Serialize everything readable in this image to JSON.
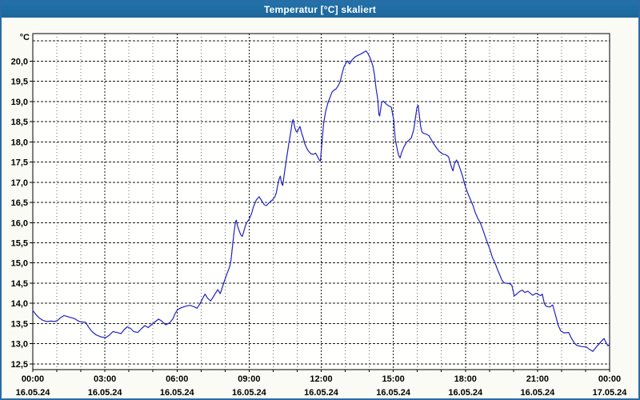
{
  "window": {
    "title": "Temperatur [°C] skaliert"
  },
  "colors": {
    "titlebar_bg": "#1f6ba1",
    "titlebar_text": "#ffffff",
    "window_border": "#2a6ca5",
    "window_bg": "#fbfbf5",
    "plot_bg": "#fffffd",
    "plot_border": "#000000",
    "grid_major": "#1a1a1a",
    "grid_minor": "#6a6a6a",
    "label_color": "#000000",
    "line_color": "#2222c0"
  },
  "chart_data": {
    "type": "line",
    "title": "Temperatur [°C] skaliert",
    "unit_label": "°C",
    "xlabel": "",
    "ylabel": "°C",
    "xlim_minutes": [
      0,
      1440
    ],
    "ylim": [
      12.36,
      20.68
    ],
    "grid": true,
    "legend_position": "none",
    "y_ticks": [
      {
        "v": 12.5,
        "label": "12,5"
      },
      {
        "v": 13.0,
        "label": "13,0"
      },
      {
        "v": 13.5,
        "label": "13,5"
      },
      {
        "v": 14.0,
        "label": "14,0"
      },
      {
        "v": 14.5,
        "label": "14,5"
      },
      {
        "v": 15.0,
        "label": "15,0"
      },
      {
        "v": 15.5,
        "label": "15,5"
      },
      {
        "v": 16.0,
        "label": "16,0"
      },
      {
        "v": 16.5,
        "label": "16,5"
      },
      {
        "v": 17.0,
        "label": "17,0"
      },
      {
        "v": 17.5,
        "label": "17,5"
      },
      {
        "v": 18.0,
        "label": "18,0"
      },
      {
        "v": 18.5,
        "label": "18,5"
      },
      {
        "v": 19.0,
        "label": "19,0"
      },
      {
        "v": 19.5,
        "label": "19,5"
      },
      {
        "v": 20.0,
        "label": "20,0"
      },
      {
        "v": 20.5,
        "label": ""
      }
    ],
    "x_ticks": [
      {
        "hour": 0,
        "time": "00:00",
        "date": "16.05.24"
      },
      {
        "hour": 3,
        "time": "03:00",
        "date": "16.05.24"
      },
      {
        "hour": 6,
        "time": "06:00",
        "date": "16.05.24"
      },
      {
        "hour": 9,
        "time": "09:00",
        "date": "16.05.24"
      },
      {
        "hour": 12,
        "time": "12:00",
        "date": "16.05.24"
      },
      {
        "hour": 15,
        "time": "15:00",
        "date": "16.05.24"
      },
      {
        "hour": 18,
        "time": "18:00",
        "date": "16.05.24"
      },
      {
        "hour": 21,
        "time": "21:00",
        "date": "16.05.24"
      },
      {
        "hour": 24,
        "time": "00:00",
        "date": "17.05.24"
      }
    ],
    "series": [
      {
        "name": "Temperatur",
        "color": "#2222c0",
        "points": [
          [
            0,
            13.82
          ],
          [
            8,
            13.72
          ],
          [
            16,
            13.64
          ],
          [
            25,
            13.58
          ],
          [
            35,
            13.55
          ],
          [
            45,
            13.56
          ],
          [
            55,
            13.55
          ],
          [
            62,
            13.58
          ],
          [
            70,
            13.65
          ],
          [
            78,
            13.7
          ],
          [
            85,
            13.68
          ],
          [
            95,
            13.65
          ],
          [
            105,
            13.62
          ],
          [
            112,
            13.57
          ],
          [
            120,
            13.54
          ],
          [
            132,
            13.53
          ],
          [
            140,
            13.4
          ],
          [
            148,
            13.3
          ],
          [
            158,
            13.22
          ],
          [
            170,
            13.17
          ],
          [
            182,
            13.15
          ],
          [
            192,
            13.22
          ],
          [
            200,
            13.3
          ],
          [
            210,
            13.28
          ],
          [
            220,
            13.25
          ],
          [
            228,
            13.35
          ],
          [
            236,
            13.42
          ],
          [
            244,
            13.38
          ],
          [
            252,
            13.3
          ],
          [
            262,
            13.28
          ],
          [
            272,
            13.38
          ],
          [
            280,
            13.45
          ],
          [
            288,
            13.4
          ],
          [
            296,
            13.47
          ],
          [
            305,
            13.54
          ],
          [
            314,
            13.61
          ],
          [
            322,
            13.56
          ],
          [
            332,
            13.47
          ],
          [
            342,
            13.52
          ],
          [
            350,
            13.62
          ],
          [
            356,
            13.76
          ],
          [
            362,
            13.85
          ],
          [
            372,
            13.9
          ],
          [
            382,
            13.93
          ],
          [
            392,
            13.95
          ],
          [
            402,
            13.92
          ],
          [
            410,
            13.88
          ],
          [
            418,
            14.0
          ],
          [
            425,
            14.14
          ],
          [
            430,
            14.23
          ],
          [
            436,
            14.13
          ],
          [
            444,
            14.06
          ],
          [
            450,
            14.15
          ],
          [
            456,
            14.25
          ],
          [
            462,
            14.34
          ],
          [
            468,
            14.24
          ],
          [
            474,
            14.42
          ],
          [
            480,
            14.6
          ],
          [
            485,
            14.74
          ],
          [
            489,
            14.84
          ],
          [
            492,
            14.92
          ],
          [
            495,
            15.08
          ],
          [
            499,
            15.45
          ],
          [
            503,
            15.8
          ],
          [
            506,
            16.02
          ],
          [
            508,
            16.06
          ],
          [
            511,
            15.92
          ],
          [
            515,
            15.8
          ],
          [
            519,
            15.7
          ],
          [
            523,
            15.66
          ],
          [
            526,
            15.76
          ],
          [
            530,
            15.9
          ],
          [
            534,
            16.0
          ],
          [
            540,
            16.08
          ],
          [
            546,
            16.22
          ],
          [
            551,
            16.4
          ],
          [
            558,
            16.56
          ],
          [
            565,
            16.64
          ],
          [
            571,
            16.55
          ],
          [
            578,
            16.44
          ],
          [
            583,
            16.42
          ],
          [
            591,
            16.5
          ],
          [
            598,
            16.56
          ],
          [
            604,
            16.63
          ],
          [
            608,
            16.74
          ],
          [
            612,
            16.95
          ],
          [
            615,
            17.08
          ],
          [
            618,
            17.15
          ],
          [
            621,
            16.98
          ],
          [
            624,
            16.92
          ],
          [
            629,
            17.28
          ],
          [
            635,
            17.68
          ],
          [
            640,
            18.0
          ],
          [
            645,
            18.3
          ],
          [
            648,
            18.5
          ],
          [
            650,
            18.55
          ],
          [
            654,
            18.35
          ],
          [
            657,
            18.27
          ],
          [
            660,
            18.24
          ],
          [
            664,
            18.33
          ],
          [
            667,
            18.38
          ],
          [
            671,
            18.22
          ],
          [
            675,
            18.1
          ],
          [
            679,
            17.95
          ],
          [
            684,
            17.84
          ],
          [
            689,
            17.76
          ],
          [
            695,
            17.7
          ],
          [
            701,
            17.69
          ],
          [
            706,
            17.72
          ],
          [
            711,
            17.63
          ],
          [
            715,
            17.55
          ],
          [
            718,
            17.52
          ],
          [
            722,
            18.0
          ],
          [
            726,
            18.45
          ],
          [
            731,
            18.75
          ],
          [
            737,
            18.97
          ],
          [
            742,
            19.1
          ],
          [
            747,
            19.23
          ],
          [
            752,
            19.28
          ],
          [
            757,
            19.31
          ],
          [
            762,
            19.38
          ],
          [
            767,
            19.48
          ],
          [
            772,
            19.68
          ],
          [
            777,
            19.86
          ],
          [
            783,
            19.97
          ],
          [
            786,
            20.0
          ],
          [
            791,
            19.93
          ],
          [
            797,
            20.03
          ],
          [
            804,
            20.1
          ],
          [
            811,
            20.14
          ],
          [
            818,
            20.17
          ],
          [
            825,
            20.21
          ],
          [
            832,
            20.25
          ],
          [
            837,
            20.18
          ],
          [
            843,
            20.06
          ],
          [
            849,
            19.88
          ],
          [
            853,
            19.66
          ],
          [
            857,
            19.32
          ],
          [
            861,
            19.07
          ],
          [
            864,
            18.68
          ],
          [
            866,
            18.64
          ],
          [
            871,
            18.98
          ],
          [
            875,
            19.01
          ],
          [
            881,
            18.95
          ],
          [
            887,
            18.9
          ],
          [
            895,
            18.86
          ],
          [
            901,
            18.55
          ],
          [
            905,
            18.06
          ],
          [
            909,
            17.86
          ],
          [
            913,
            17.68
          ],
          [
            917,
            17.6
          ],
          [
            921,
            17.74
          ],
          [
            927,
            17.88
          ],
          [
            933,
            17.99
          ],
          [
            939,
            18.04
          ],
          [
            945,
            18.1
          ],
          [
            951,
            18.3
          ],
          [
            955,
            18.58
          ],
          [
            959,
            18.85
          ],
          [
            962,
            18.91
          ],
          [
            965,
            18.66
          ],
          [
            968,
            18.4
          ],
          [
            971,
            18.26
          ],
          [
            975,
            18.21
          ],
          [
            983,
            18.19
          ],
          [
            989,
            18.15
          ],
          [
            995,
            18.05
          ],
          [
            1001,
            17.95
          ],
          [
            1008,
            17.85
          ],
          [
            1015,
            17.76
          ],
          [
            1023,
            17.7
          ],
          [
            1031,
            17.68
          ],
          [
            1038,
            17.63
          ],
          [
            1045,
            17.38
          ],
          [
            1049,
            17.28
          ],
          [
            1053,
            17.46
          ],
          [
            1058,
            17.55
          ],
          [
            1063,
            17.44
          ],
          [
            1068,
            17.3
          ],
          [
            1073,
            17.15
          ],
          [
            1077,
            17.0
          ],
          [
            1081,
            16.86
          ],
          [
            1087,
            16.7
          ],
          [
            1093,
            16.56
          ],
          [
            1099,
            16.42
          ],
          [
            1104,
            16.26
          ],
          [
            1111,
            16.1
          ],
          [
            1117,
            16.0
          ],
          [
            1123,
            15.84
          ],
          [
            1130,
            15.64
          ],
          [
            1135,
            15.5
          ],
          [
            1141,
            15.34
          ],
          [
            1147,
            15.15
          ],
          [
            1154,
            15.0
          ],
          [
            1160,
            14.84
          ],
          [
            1166,
            14.7
          ],
          [
            1171,
            14.58
          ],
          [
            1176,
            14.51
          ],
          [
            1182,
            14.5
          ],
          [
            1190,
            14.49
          ],
          [
            1196,
            14.45
          ],
          [
            1202,
            14.18
          ],
          [
            1208,
            14.23
          ],
          [
            1216,
            14.3
          ],
          [
            1222,
            14.33
          ],
          [
            1228,
            14.27
          ],
          [
            1236,
            14.3
          ],
          [
            1242,
            14.25
          ],
          [
            1248,
            14.2
          ],
          [
            1256,
            14.25
          ],
          [
            1262,
            14.22
          ],
          [
            1268,
            14.19
          ],
          [
            1272,
            14.23
          ],
          [
            1277,
            14.0
          ],
          [
            1281,
            13.93
          ],
          [
            1290,
            13.91
          ],
          [
            1298,
            13.96
          ],
          [
            1306,
            13.67
          ],
          [
            1312,
            13.45
          ],
          [
            1318,
            13.32
          ],
          [
            1326,
            13.27
          ],
          [
            1338,
            13.28
          ],
          [
            1344,
            13.15
          ],
          [
            1352,
            13.02
          ],
          [
            1358,
            12.96
          ],
          [
            1370,
            12.93
          ],
          [
            1382,
            12.92
          ],
          [
            1390,
            12.86
          ],
          [
            1398,
            12.81
          ],
          [
            1406,
            12.91
          ],
          [
            1414,
            13.0
          ],
          [
            1420,
            13.07
          ],
          [
            1426,
            13.13
          ],
          [
            1432,
            13.01
          ],
          [
            1436,
            12.95
          ],
          [
            1440,
            12.98
          ]
        ]
      }
    ]
  }
}
